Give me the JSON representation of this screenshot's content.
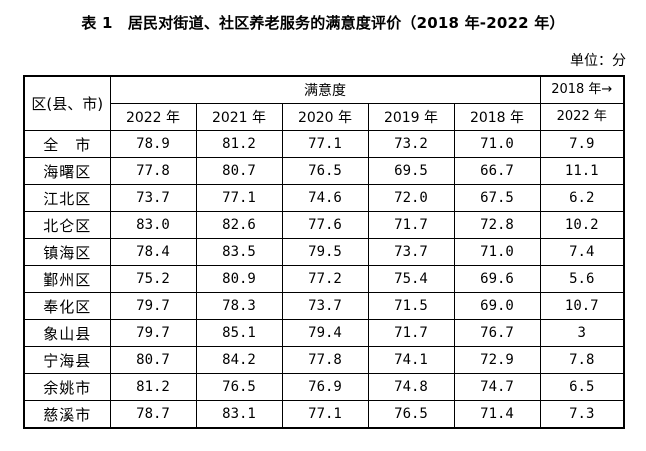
{
  "title": "表 1　居民对街道、社区养老服务的满意度评价（2018 年-2022 年）",
  "unit": "单位：分",
  "table": {
    "region_header": "区(县、市)",
    "group_header": "满意度",
    "change_header_line1": "2018 年→",
    "change_header_line2": "2022 年",
    "years": [
      "2022 年",
      "2021 年",
      "2020 年",
      "2019 年",
      "2018 年"
    ],
    "rows": [
      {
        "name": "全　市",
        "values": [
          "78.9",
          "81.2",
          "77.1",
          "73.2",
          "71.0"
        ],
        "change": "7.9"
      },
      {
        "name": "海曙区",
        "values": [
          "77.8",
          "80.7",
          "76.5",
          "69.5",
          "66.7"
        ],
        "change": "11.1"
      },
      {
        "name": "江北区",
        "values": [
          "73.7",
          "77.1",
          "74.6",
          "72.0",
          "67.5"
        ],
        "change": "6.2"
      },
      {
        "name": "北仑区",
        "values": [
          "83.0",
          "82.6",
          "77.6",
          "71.7",
          "72.8"
        ],
        "change": "10.2"
      },
      {
        "name": "镇海区",
        "values": [
          "78.4",
          "83.5",
          "79.5",
          "73.7",
          "71.0"
        ],
        "change": "7.4"
      },
      {
        "name": "鄞州区",
        "values": [
          "75.2",
          "80.9",
          "77.2",
          "75.4",
          "69.6"
        ],
        "change": "5.6"
      },
      {
        "name": "奉化区",
        "values": [
          "79.7",
          "78.3",
          "73.7",
          "71.5",
          "69.0"
        ],
        "change": "10.7"
      },
      {
        "name": "象山县",
        "values": [
          "79.7",
          "85.1",
          "79.4",
          "71.7",
          "76.7"
        ],
        "change": "3"
      },
      {
        "name": "宁海县",
        "values": [
          "80.7",
          "84.2",
          "77.8",
          "74.1",
          "72.9"
        ],
        "change": "7.8"
      },
      {
        "name": "余姚市",
        "values": [
          "81.2",
          "76.5",
          "76.9",
          "74.8",
          "74.7"
        ],
        "change": "6.5"
      },
      {
        "name": "慈溪市",
        "values": [
          "78.7",
          "83.1",
          "77.1",
          "76.5",
          "71.4"
        ],
        "change": "7.3"
      }
    ]
  }
}
